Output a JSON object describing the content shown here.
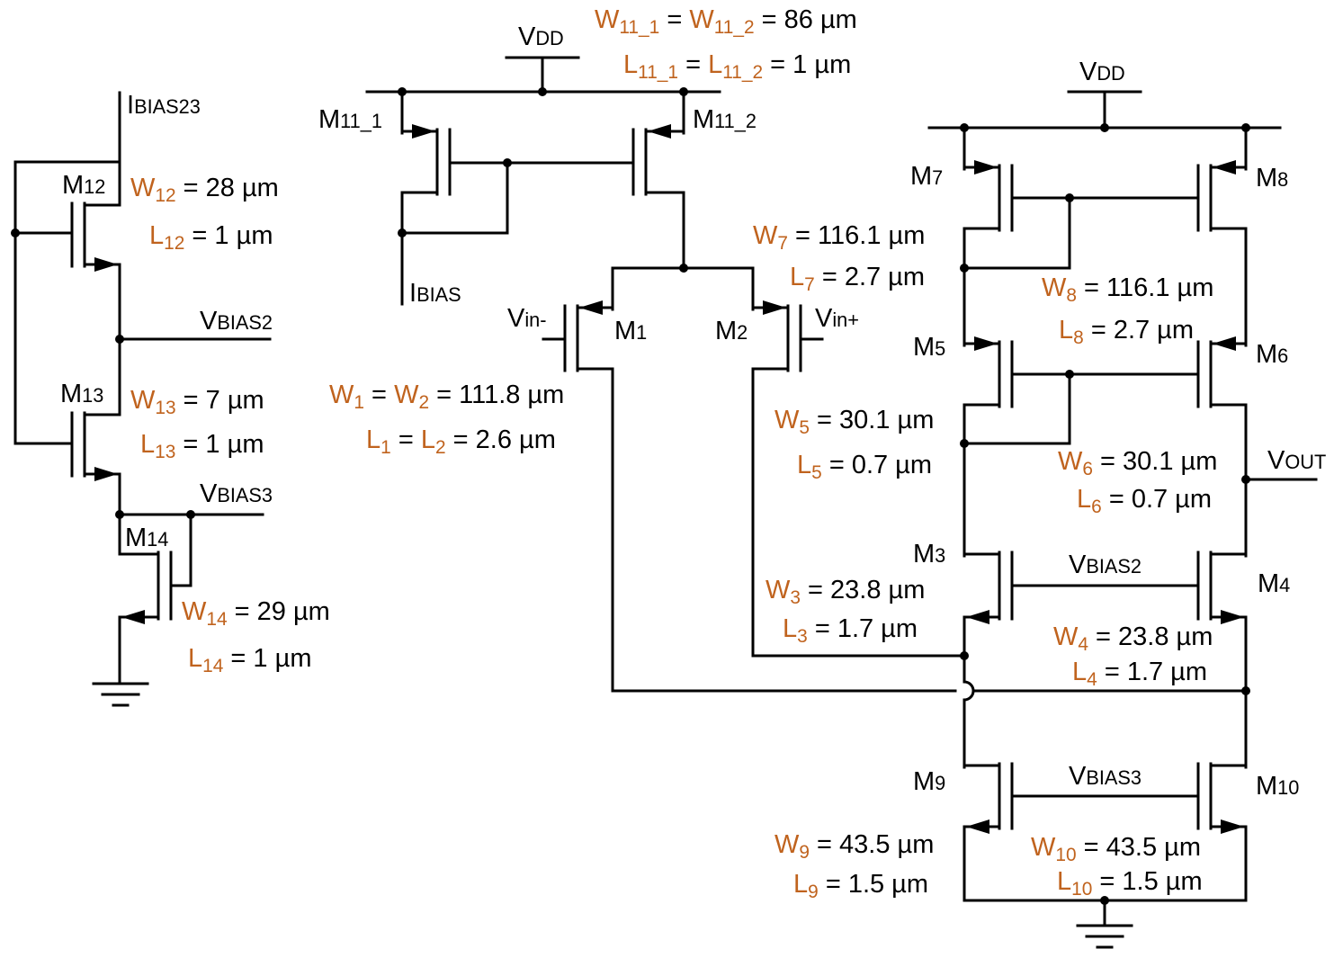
{
  "accent_color": "#c0631e",
  "wire_color": "#000000",
  "nets": {
    "vdd_left": {
      "main": "V",
      "small": "DD"
    },
    "vdd_right": {
      "main": "V",
      "small": "DD"
    },
    "ibias23": {
      "main": "I",
      "small": "BIAS23"
    },
    "ibias": {
      "main": "I",
      "small": "BIAS"
    },
    "vbias2_left": {
      "main": "V",
      "small": "BIAS2"
    },
    "vbias3_left": {
      "main": "V",
      "small": "BIAS3"
    },
    "vbias2_right": {
      "main": "V",
      "small": "BIAS2"
    },
    "vbias3_right": {
      "main": "V",
      "small": "BIAS3"
    },
    "vin_minus": {
      "main": "V",
      "small": "in-"
    },
    "vin_plus": {
      "main": "V",
      "small": "in+"
    },
    "vout": {
      "main": "V",
      "small": "OUT"
    }
  },
  "transistors": {
    "m1": {
      "letter": "M",
      "num": "1"
    },
    "m2": {
      "letter": "M",
      "num": "2"
    },
    "m3": {
      "letter": "M",
      "num": "3"
    },
    "m4": {
      "letter": "M",
      "num": "4"
    },
    "m5": {
      "letter": "M",
      "num": "5"
    },
    "m6": {
      "letter": "M",
      "num": "6"
    },
    "m7": {
      "letter": "M",
      "num": "7"
    },
    "m8": {
      "letter": "M",
      "num": "8"
    },
    "m9": {
      "letter": "M",
      "num": "9"
    },
    "m10": {
      "letter": "M",
      "num": "10"
    },
    "m11_1": {
      "letter": "M",
      "num": "11_1"
    },
    "m11_2": {
      "letter": "M",
      "num": "11_2"
    },
    "m12": {
      "letter": "M",
      "num": "12"
    },
    "m13": {
      "letter": "M",
      "num": "13"
    },
    "m14": {
      "letter": "M",
      "num": "14"
    }
  },
  "sizes": {
    "w11": {
      "sym1": "W",
      "sub1": "11_1",
      "eq1": " = ",
      "sym2": "W",
      "sub2": "11_2",
      "rest": " = 86 µm"
    },
    "l11": {
      "sym1": "L",
      "sub1": "11_1",
      "eq1": " = ",
      "sym2": "L",
      "sub2": "11_2",
      "rest": " = 1 µm"
    },
    "w12": {
      "sym": "W",
      "sub": "12",
      "rest": " = 28 µm"
    },
    "l12": {
      "sym": "L",
      "sub": "12",
      "rest": " = 1 µm"
    },
    "w13": {
      "sym": "W",
      "sub": "13",
      "rest": " = 7 µm"
    },
    "l13": {
      "sym": "L",
      "sub": "13",
      "rest": " = 1 µm"
    },
    "w14": {
      "sym": "W",
      "sub": "14",
      "rest": " = 29 µm"
    },
    "l14": {
      "sym": "L",
      "sub": "14",
      "rest": " = 1 µm"
    },
    "w12eq": {
      "sym1": "W",
      "sub1": "1",
      "eq1": " = ",
      "sym2": "W",
      "sub2": "2",
      "rest": " = 111.8 µm"
    },
    "l12eq": {
      "sym1": "L",
      "sub1": "1",
      "eq1": " = ",
      "sym2": "L",
      "sub2": "2",
      "rest": " = 2.6 µm"
    },
    "w7": {
      "sym": "W",
      "sub": "7",
      "rest": " = 116.1 µm"
    },
    "l7": {
      "sym": "L",
      "sub": "7",
      "rest": " = 2.7 µm"
    },
    "w8": {
      "sym": "W",
      "sub": "8",
      "rest": " = 116.1 µm"
    },
    "l8": {
      "sym": "L",
      "sub": "8",
      "rest": " = 2.7 µm"
    },
    "w5": {
      "sym": "W",
      "sub": "5",
      "rest": " = 30.1 µm"
    },
    "l5": {
      "sym": "L",
      "sub": "5",
      "rest": " = 0.7 µm"
    },
    "w6": {
      "sym": "W",
      "sub": "6",
      "rest": " = 30.1 µm"
    },
    "l6": {
      "sym": "L",
      "sub": "6",
      "rest": " = 0.7 µm"
    },
    "w3": {
      "sym": "W",
      "sub": "3",
      "rest": " = 23.8 µm"
    },
    "l3": {
      "sym": "L",
      "sub": "3",
      "rest": " = 1.7 µm"
    },
    "w4": {
      "sym": "W",
      "sub": "4",
      "rest": " = 23.8 µm"
    },
    "l4": {
      "sym": "L",
      "sub": "4",
      "rest": " = 1.7 µm"
    },
    "w9": {
      "sym": "W",
      "sub": "9",
      "rest": " = 43.5 µm"
    },
    "l9": {
      "sym": "L",
      "sub": "9",
      "rest": " = 1.5 µm"
    },
    "w10": {
      "sym": "W",
      "sub": "10",
      "rest": " = 43.5 µm"
    },
    "l10": {
      "sym": "L",
      "sub": "10",
      "rest": " = 1.5 µm"
    }
  }
}
